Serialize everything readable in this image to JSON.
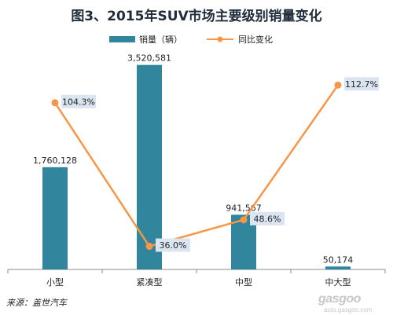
{
  "chart_data": {
    "type": "bar",
    "title": "图3、2015年SUV市场主要级别销量变化",
    "categories": [
      "小型",
      "紧凑型",
      "中型",
      "中大型"
    ],
    "series": [
      {
        "name": "销量（辆）",
        "type": "bar",
        "axis": "left",
        "color": "#31859c",
        "values": [
          1760128,
          3520581,
          941567,
          50174
        ],
        "labels": [
          "1,760,128",
          "3,520,581",
          "941,567",
          "50,174"
        ]
      },
      {
        "name": "同比变化",
        "type": "line",
        "axis": "right",
        "color": "#f79646",
        "values": [
          104.3,
          36.0,
          48.6,
          112.7
        ],
        "labels": [
          "104.3%",
          "36.0%",
          "48.6%",
          "112.7%"
        ]
      }
    ],
    "ylim_left": [
      0,
      3800000
    ],
    "ylim_right": [
      25,
      130
    ],
    "grid": false,
    "legend_position": "top"
  },
  "source_note": "来源：盖世汽车",
  "watermark": "gasgoo",
  "watermark_sub": "auto.gasgoo.com",
  "colors": {
    "bar": "#31859c",
    "line": "#f79646",
    "label_box": "#dbe5f1"
  }
}
